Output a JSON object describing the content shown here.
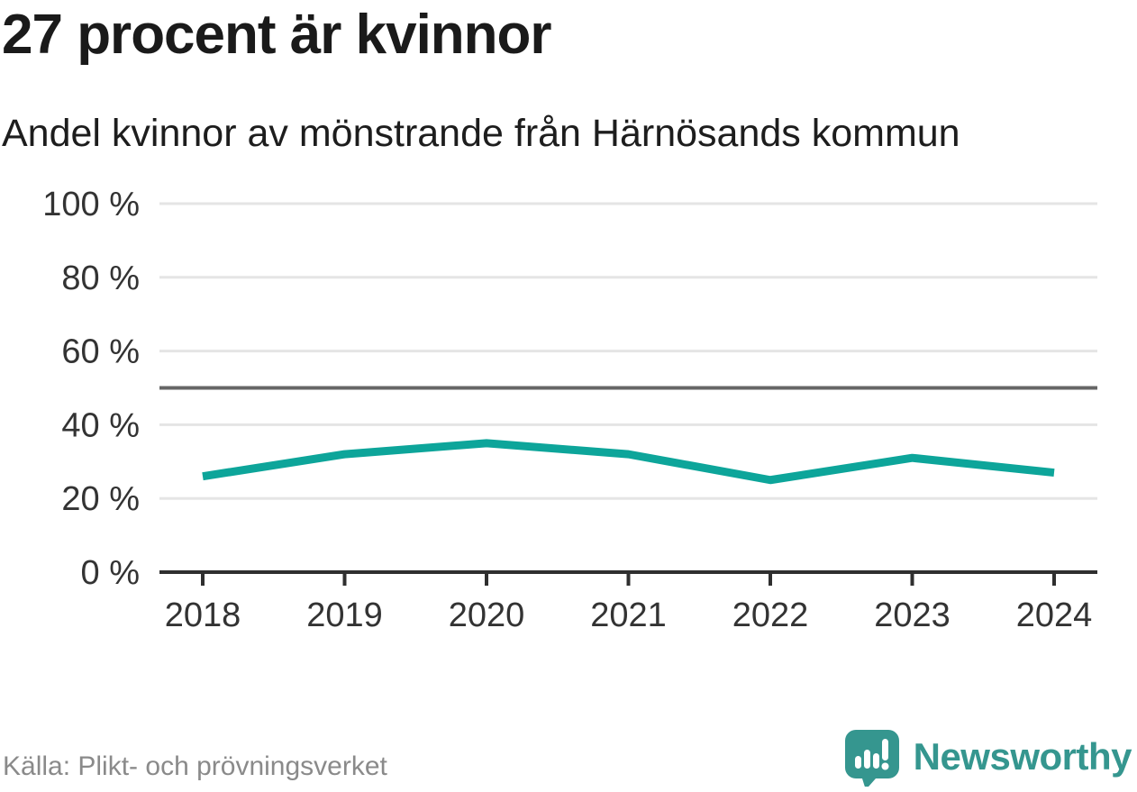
{
  "header": {
    "title": "27 procent är kvinnor",
    "subtitle": "Andel kvinnor av mönstrande från Härnösands kommun"
  },
  "chart_data": {
    "type": "line",
    "title": "27 procent är kvinnor",
    "subtitle": "Andel kvinnor av mönstrande från Härnösands kommun",
    "categories": [
      "2018",
      "2019",
      "2020",
      "2021",
      "2022",
      "2023",
      "2024"
    ],
    "series": [
      {
        "name": "Andel kvinnor av mönstrande",
        "values": [
          26,
          32,
          35,
          32,
          25,
          31,
          27
        ]
      }
    ],
    "xlabel": "",
    "ylabel": "",
    "ylim": [
      0,
      100
    ],
    "yticks": [
      0,
      20,
      40,
      60,
      80,
      100
    ],
    "ytick_suffix": " %",
    "ytick_labels": [
      "0 %",
      "20 %",
      "40 %",
      "60 %",
      "80 %",
      "100 %"
    ],
    "reference_line": 50,
    "grid": true,
    "legend": "none",
    "line_color": "#0da59a"
  },
  "footer": {
    "source": "Källa: Plikt- och prövningsverket",
    "brand": "Newsworthy"
  },
  "colors": {
    "accent_teal": "#0da59a",
    "brand_teal": "#35968f",
    "title_text": "#1a1a1a",
    "axis_text": "#333333",
    "gridline": "#e5e5e5",
    "reference_line": "#666666",
    "axis_line": "#2f2f2f",
    "source_text": "#8a8a8a"
  }
}
